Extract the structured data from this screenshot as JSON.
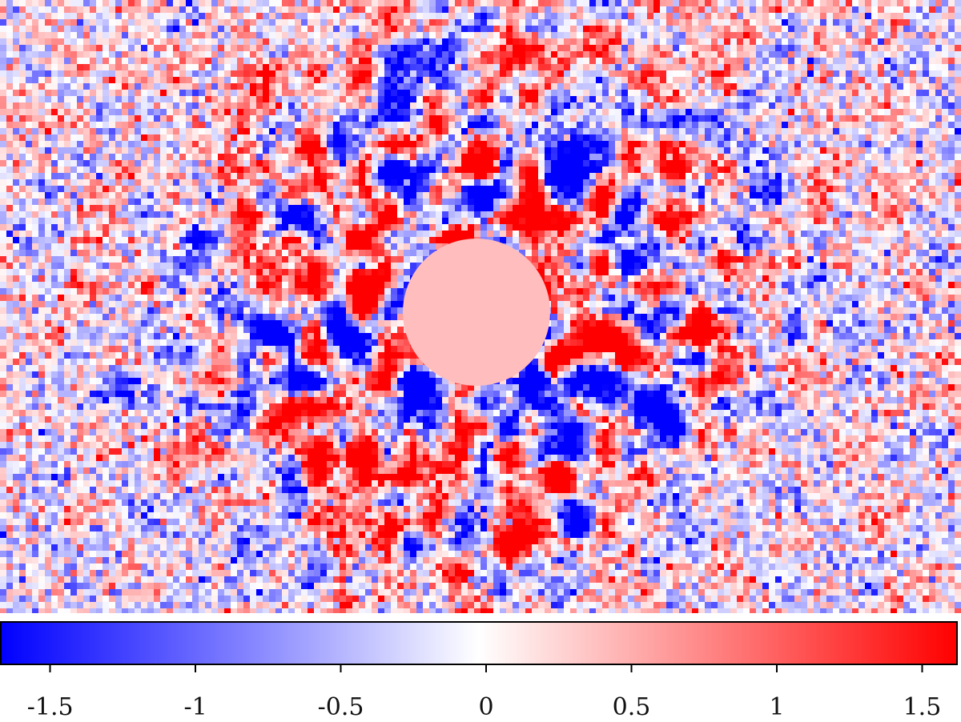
{
  "chart_data": {
    "type": "heatmap",
    "colormap": [
      "#0000ff",
      "#ffffff",
      "#ff0000"
    ],
    "clim": [
      -1.67,
      1.62
    ],
    "cticks": [
      -1.5,
      -1,
      -0.5,
      0,
      0.5,
      1,
      1.5
    ]
  }
}
